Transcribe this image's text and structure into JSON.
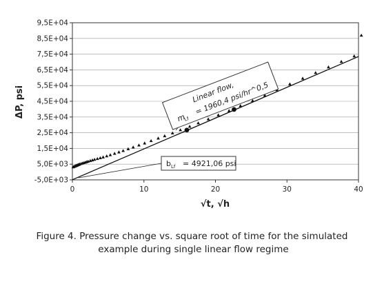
{
  "chart_data": {
    "type": "scatter",
    "xlabel": "√t, √h",
    "ylabel": "ΔP, psi",
    "xlim": [
      0,
      40
    ],
    "ylim": [
      -5000,
      95000
    ],
    "x_ticks": [
      0,
      10,
      20,
      30,
      40
    ],
    "x_tick_labels": [
      "0",
      "10",
      "20",
      "30",
      "40"
    ],
    "y_ticks": [
      -5000,
      5000,
      15000,
      25000,
      35000,
      45000,
      55000,
      65000,
      75000,
      85000,
      95000
    ],
    "y_tick_labels": [
      "-5,0E+03",
      "5,0E+03",
      "1,5E+04",
      "2,5E+04",
      "3,5E+04",
      "4,5E+04",
      "5,5E+04",
      "6,5E+04",
      "7,5E+04",
      "8,5E+04",
      "9,5E+04"
    ],
    "grid": "horizontal",
    "series": [
      {
        "marker": "triangle",
        "x": [
          0.1,
          0.2,
          0.3,
          0.4,
          0.5,
          0.6,
          0.7,
          0.8,
          0.9,
          1.0,
          1.2,
          1.4,
          1.6,
          1.8,
          2.0,
          2.2,
          2.5,
          2.8,
          3.1,
          3.5,
          3.9,
          4.3,
          4.8,
          5.3,
          5.9,
          6.5,
          7.1,
          7.8,
          8.5,
          9.3,
          10.1,
          11.0,
          12.0,
          12.9,
          14.0,
          15.1,
          16.4,
          17.6,
          19.0,
          20.4,
          21.9,
          23.5,
          25.2,
          26.9,
          28.6,
          30.4,
          32.2,
          34.0,
          35.8,
          37.6,
          39.4,
          40.4
        ],
        "y": [
          3200,
          3400,
          3600,
          3800,
          4000,
          4200,
          4400,
          4600,
          4800,
          5000,
          5300,
          5600,
          5900,
          6200,
          6500,
          6800,
          7200,
          7600,
          8000,
          8500,
          9000,
          9500,
          10200,
          10900,
          11800,
          12700,
          13600,
          14700,
          15800,
          17100,
          18400,
          19900,
          21500,
          23000,
          24800,
          26800,
          29000,
          31200,
          33700,
          36300,
          39000,
          42200,
          45400,
          48800,
          52300,
          56000,
          59600,
          63200,
          66800,
          70300,
          73800,
          87000
        ]
      },
      {
        "marker": "circle",
        "x": [
          16,
          22.6
        ],
        "y": [
          26700,
          39800
        ]
      }
    ],
    "fitted_line": {
      "slope": 1960.4,
      "intercept": -4921.06
    },
    "annotations": {
      "linear_flow_title": "Linear flow,",
      "m_symbol": "m",
      "m_subscript": "Lf",
      "m_value": "= 1960,4 psi/hr^0,5",
      "b_symbol": "b",
      "b_subscript": "Lf",
      "b_value": "= 4921,06 psi"
    }
  },
  "caption": {
    "line1": "Figure 4. Pressure change vs. square root of time for the simulated",
    "line2": "example during single linear flow regime"
  }
}
